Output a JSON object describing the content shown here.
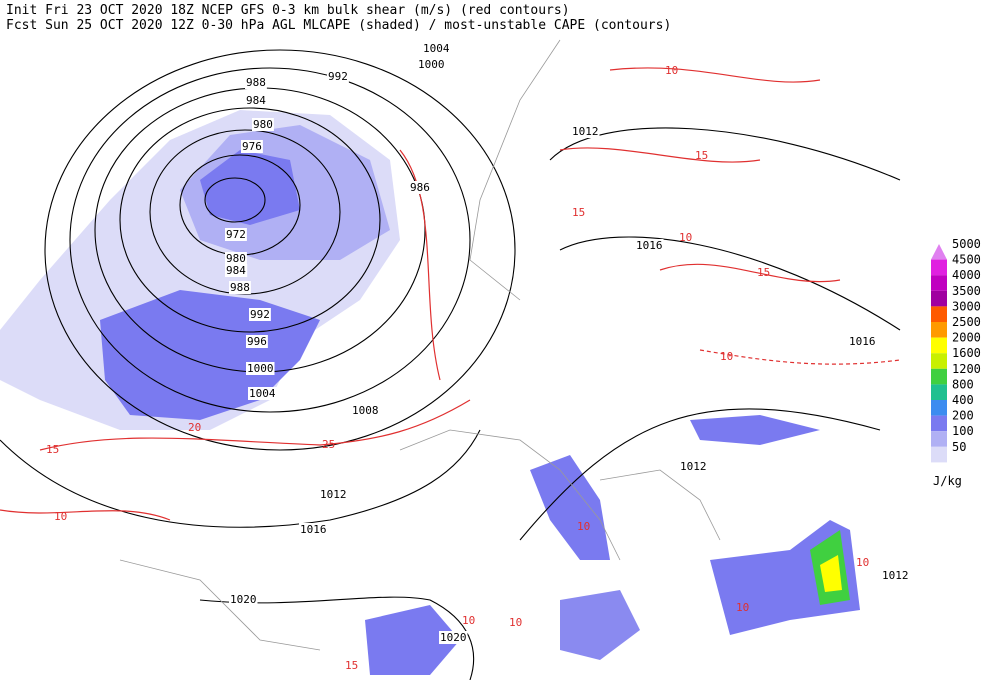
{
  "header": {
    "line1": "Init  Fri 23 OCT 2020 18Z   NCEP GFS 0-3 km bulk shear (m/s) (red contours)",
    "line2": "Fcst Sun 25 OCT 2020 12Z  0-30 hPa AGL MLCAPE (shaded) / most-unstable CAPE (contours)"
  },
  "legend": {
    "unit": "J/kg",
    "levels": [
      {
        "label": "5000",
        "color": "#e080f0"
      },
      {
        "label": "4500",
        "color": "#e020e0"
      },
      {
        "label": "4000",
        "color": "#c000c0"
      },
      {
        "label": "3500",
        "color": "#a000a0"
      },
      {
        "label": "3000",
        "color": "#ff5a00"
      },
      {
        "label": "2500",
        "color": "#ff9a00"
      },
      {
        "label": "2000",
        "color": "#ffff00"
      },
      {
        "label": "1600",
        "color": "#c8f000"
      },
      {
        "label": "1200",
        "color": "#40d040"
      },
      {
        "label": "800",
        "color": "#20c090"
      },
      {
        "label": "400",
        "color": "#3c8cf0"
      },
      {
        "label": "200",
        "color": "#7a7af0"
      },
      {
        "label": "100",
        "color": "#b0b0f4"
      },
      {
        "label": "50",
        "color": "#dcdcf8"
      }
    ]
  },
  "isobar_labels": [
    "1004",
    "1000",
    "992",
    "988",
    "984",
    "980",
    "976",
    "986",
    "972",
    "980",
    "984",
    "988",
    "992",
    "996",
    "1000",
    "1004",
    "1008",
    "1012",
    "1016",
    "1020",
    "1020",
    "1012",
    "1016",
    "1016",
    "1012",
    "1012"
  ],
  "shear_labels": [
    "10",
    "15",
    "15",
    "10",
    "15",
    "10",
    "10",
    "10",
    "10",
    "15",
    "20",
    "25",
    "15",
    "10",
    "10",
    "10"
  ]
}
